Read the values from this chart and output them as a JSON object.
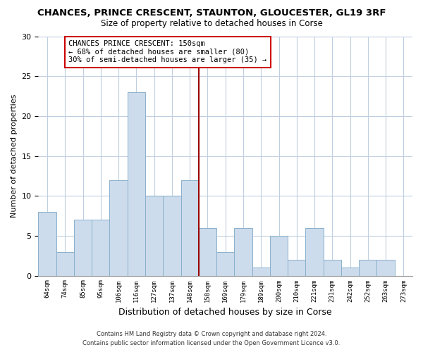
{
  "title": "CHANCES, PRINCE CRESCENT, STAUNTON, GLOUCESTER, GL19 3RF",
  "subtitle": "Size of property relative to detached houses in Corse",
  "xlabel": "Distribution of detached houses by size in Corse",
  "ylabel": "Number of detached properties",
  "bins": [
    "64sqm",
    "74sqm",
    "85sqm",
    "95sqm",
    "106sqm",
    "116sqm",
    "127sqm",
    "137sqm",
    "148sqm",
    "158sqm",
    "169sqm",
    "179sqm",
    "189sqm",
    "200sqm",
    "210sqm",
    "221sqm",
    "231sqm",
    "242sqm",
    "252sqm",
    "263sqm",
    "273sqm"
  ],
  "values": [
    8,
    3,
    7,
    7,
    12,
    23,
    10,
    10,
    12,
    6,
    3,
    6,
    1,
    5,
    2,
    6,
    2,
    1,
    2,
    2,
    0
  ],
  "bar_color": "#ccdcec",
  "bar_edge_color": "#8ab0cc",
  "reference_line_color": "#990000",
  "annotation_title": "CHANCES PRINCE CRESCENT: 150sqm",
  "annotation_line1": "← 68% of detached houses are smaller (80)",
  "annotation_line2": "30% of semi-detached houses are larger (35) →",
  "annotation_box_color": "#ffffff",
  "annotation_box_edge": "#cc0000",
  "ylim": [
    0,
    30
  ],
  "yticks": [
    0,
    5,
    10,
    15,
    20,
    25,
    30
  ],
  "footer1": "Contains HM Land Registry data © Crown copyright and database right 2024.",
  "footer2": "Contains public sector information licensed under the Open Government Licence v3.0.",
  "background_color": "#ffffff",
  "grid_color": "#c0cfe0"
}
